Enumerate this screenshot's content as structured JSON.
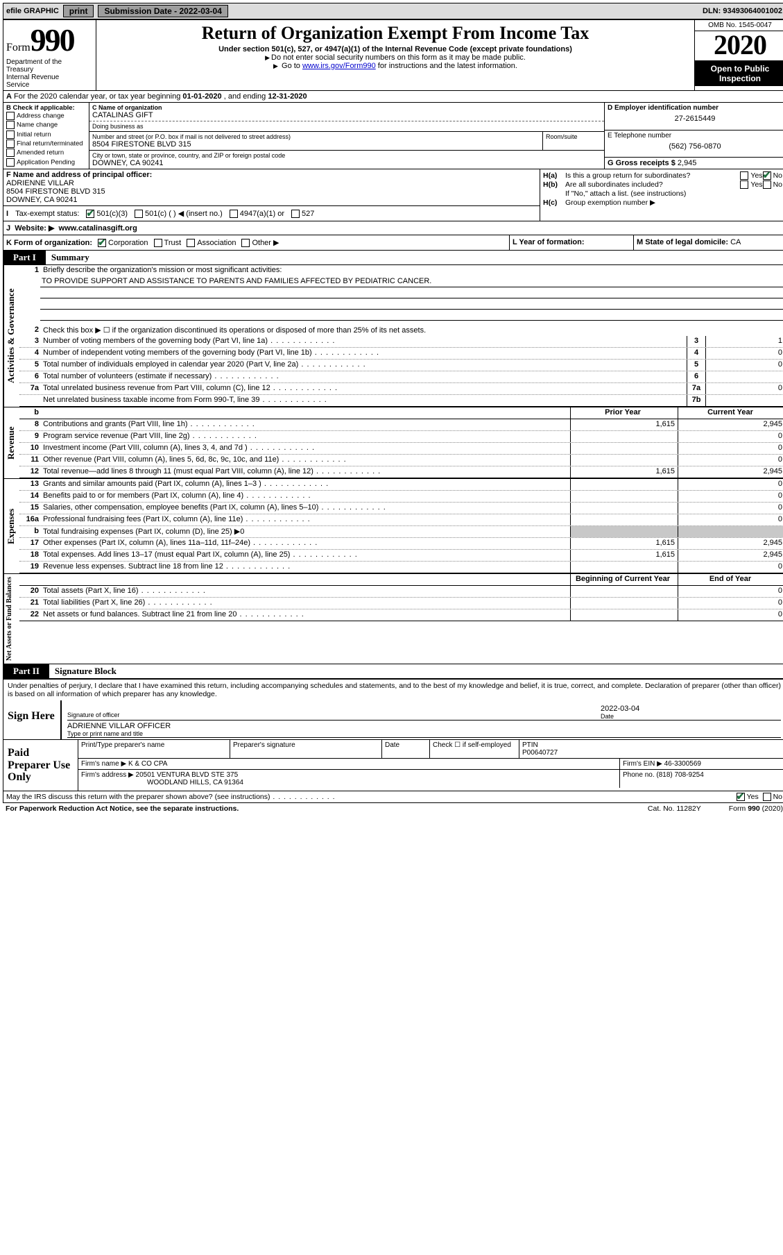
{
  "topbar": {
    "efile": "efile GRAPHIC",
    "print": "print",
    "sub_label": "Submission Date - ",
    "sub_date": "2022-03-04",
    "dln_label": "DLN: ",
    "dln": "93493064001002"
  },
  "header": {
    "form_word": "Form",
    "form_no": "990",
    "dept": "Department of the Treasury\nInternal Revenue Service",
    "title": "Return of Organization Exempt From Income Tax",
    "subtitle": "Under section 501(c), 527, or 4947(a)(1) of the Internal Revenue Code (except private foundations)",
    "note1": "Do not enter social security numbers on this form as it may be made public.",
    "note2_pre": "Go to ",
    "note2_link": "www.irs.gov/Form990",
    "note2_post": " for instructions and the latest information.",
    "omb": "OMB No. 1545-0047",
    "year": "2020",
    "open": "Open to Public Inspection"
  },
  "row_a": {
    "text_pre": "For the 2020 calendar year, or tax year beginning ",
    "begin": "01-01-2020",
    "text_mid": " , and ending ",
    "end": "12-31-2020"
  },
  "b": {
    "label": "B Check if applicable:",
    "opts": [
      "Address change",
      "Name change",
      "Initial return",
      "Final return/terminated",
      "Amended return",
      "Application Pending"
    ]
  },
  "c": {
    "name_lbl": "C Name of organization",
    "name": "CATALINAS GIFT",
    "dba_lbl": "Doing business as",
    "street_lbl": "Number and street (or P.O. box if mail is not delivered to street address)",
    "suite_lbl": "Room/suite",
    "street": "8504 FIRESTONE BLVD 315",
    "city_lbl": "City or town, state or province, country, and ZIP or foreign postal code",
    "city": "DOWNEY, CA  90241"
  },
  "d": {
    "lbl": "D Employer identification number",
    "val": "27-2615449"
  },
  "e": {
    "lbl": "E Telephone number",
    "val": "(562) 756-0870"
  },
  "g": {
    "lbl": "G Gross receipts $ ",
    "val": "2,945"
  },
  "f": {
    "lbl": "F Name and address of principal officer:",
    "name": "ADRIENNE VILLAR",
    "addr1": "8504 FIRESTONE BLVD 315",
    "addr2": "DOWNEY, CA  90241"
  },
  "h": {
    "a_lbl": "H(a)",
    "a_txt": "Is this a group return for subordinates?",
    "b_lbl": "H(b)",
    "b_txt": "Are all subordinates included?",
    "attach": "If \"No,\" attach a list. (see instructions)",
    "c_lbl": "H(c)",
    "c_txt": "Group exemption number ▶",
    "yes": "Yes",
    "no": "No"
  },
  "i": {
    "lbl": "Tax-exempt status:",
    "o1": "501(c)(3)",
    "o2": "501(c) (  ) ◀ (insert no.)",
    "o3": "4947(a)(1) or",
    "o4": "527"
  },
  "j": {
    "lbl": "J",
    "txt": "Website: ▶",
    "val": "www.catalinasgift.org"
  },
  "k": {
    "lbl": "K Form of organization:",
    "opts": [
      "Corporation",
      "Trust",
      "Association",
      "Other ▶"
    ],
    "l_lbl": "L Year of formation:",
    "m_lbl": "M State of legal domicile: ",
    "m_val": "CA"
  },
  "part1": {
    "tab": "Part I",
    "title": "Summary"
  },
  "gov": {
    "vert": "Activities & Governance",
    "q1_lbl": "1",
    "q1_txt": "Briefly describe the organization's mission or most significant activities:",
    "mission": "TO PROVIDE SUPPORT AND ASSISTANCE TO PARENTS AND FAMILIES AFFECTED BY PEDIATRIC CANCER.",
    "q2_lbl": "2",
    "q2_txt": "Check this box ▶ ☐  if the organization discontinued its operations or disposed of more than 25% of its net assets.",
    "rows": [
      {
        "n": "3",
        "t": "Number of voting members of the governing body (Part VI, line 1a)",
        "b": "3",
        "v": "1"
      },
      {
        "n": "4",
        "t": "Number of independent voting members of the governing body (Part VI, line 1b)",
        "b": "4",
        "v": "0"
      },
      {
        "n": "5",
        "t": "Total number of individuals employed in calendar year 2020 (Part V, line 2a)",
        "b": "5",
        "v": "0"
      },
      {
        "n": "6",
        "t": "Total number of volunteers (estimate if necessary)",
        "b": "6",
        "v": ""
      },
      {
        "n": "7a",
        "t": "Total unrelated business revenue from Part VIII, column (C), line 12",
        "b": "7a",
        "v": "0"
      },
      {
        "n": "",
        "t": "Net unrelated business taxable income from Form 990-T, line 39",
        "b": "7b",
        "v": ""
      }
    ]
  },
  "rev": {
    "vert": "Revenue",
    "hdr_b": "b",
    "hdr_prior": "Prior Year",
    "hdr_cur": "Current Year",
    "rows": [
      {
        "n": "8",
        "t": "Contributions and grants (Part VIII, line 1h)",
        "p": "1,615",
        "c": "2,945"
      },
      {
        "n": "9",
        "t": "Program service revenue (Part VIII, line 2g)",
        "p": "",
        "c": "0"
      },
      {
        "n": "10",
        "t": "Investment income (Part VIII, column (A), lines 3, 4, and 7d )",
        "p": "",
        "c": "0"
      },
      {
        "n": "11",
        "t": "Other revenue (Part VIII, column (A), lines 5, 6d, 8c, 9c, 10c, and 11e)",
        "p": "",
        "c": "0"
      },
      {
        "n": "12",
        "t": "Total revenue—add lines 8 through 11 (must equal Part VIII, column (A), line 12)",
        "p": "1,615",
        "c": "2,945"
      }
    ]
  },
  "exp": {
    "vert": "Expenses",
    "rows": [
      {
        "n": "13",
        "t": "Grants and similar amounts paid (Part IX, column (A), lines 1–3 )",
        "p": "",
        "c": "0"
      },
      {
        "n": "14",
        "t": "Benefits paid to or for members (Part IX, column (A), line 4)",
        "p": "",
        "c": "0"
      },
      {
        "n": "15",
        "t": "Salaries, other compensation, employee benefits (Part IX, column (A), lines 5–10)",
        "p": "",
        "c": "0"
      },
      {
        "n": "16a",
        "t": "Professional fundraising fees (Part IX, column (A), line 11e)",
        "p": "",
        "c": "0"
      },
      {
        "n": "b",
        "t": "Total fundraising expenses (Part IX, column (D), line 25) ▶0",
        "p": "SHADE",
        "c": "SHADE"
      },
      {
        "n": "17",
        "t": "Other expenses (Part IX, column (A), lines 11a–11d, 11f–24e)",
        "p": "1,615",
        "c": "2,945"
      },
      {
        "n": "18",
        "t": "Total expenses. Add lines 13–17 (must equal Part IX, column (A), line 25)",
        "p": "1,615",
        "c": "2,945"
      },
      {
        "n": "19",
        "t": "Revenue less expenses. Subtract line 18 from line 12",
        "p": "",
        "c": "0"
      }
    ]
  },
  "net": {
    "vert": "Net Assets or Fund Balances",
    "hdr_beg": "Beginning of Current Year",
    "hdr_end": "End of Year",
    "rows": [
      {
        "n": "20",
        "t": "Total assets (Part X, line 16)",
        "p": "",
        "c": "0"
      },
      {
        "n": "21",
        "t": "Total liabilities (Part X, line 26)",
        "p": "",
        "c": "0"
      },
      {
        "n": "22",
        "t": "Net assets or fund balances. Subtract line 21 from line 20",
        "p": "",
        "c": "0"
      }
    ]
  },
  "part2": {
    "tab": "Part II",
    "title": "Signature Block"
  },
  "penalty": "Under penalties of perjury, I declare that I have examined this return, including accompanying schedules and statements, and to the best of my knowledge and belief, it is true, correct, and complete. Declaration of preparer (other than officer) is based on all information of which preparer has any knowledge.",
  "sign": {
    "here": "Sign Here",
    "sig_lbl": "Signature of officer",
    "date_lbl": "Date",
    "date": "2022-03-04",
    "name": "ADRIENNE VILLAR  OFFICER",
    "name_lbl": "Type or print name and title"
  },
  "paid": {
    "label": "Paid Preparer Use Only",
    "h1": "Print/Type preparer's name",
    "h2": "Preparer's signature",
    "h3": "Date",
    "h4_pre": "Check ☐ if self-employed",
    "h5": "PTIN",
    "ptin": "P00640727",
    "firm_lbl": "Firm's name    ▶ ",
    "firm": "K & CO CPA",
    "ein_lbl": "Firm's EIN ▶ ",
    "ein": "46-3300569",
    "addr_lbl": "Firm's address ▶ ",
    "addr1": "20501 VENTURA BLVD STE 375",
    "addr2": "WOODLAND HILLS, CA  91364",
    "phone_lbl": "Phone no. ",
    "phone": "(818) 708-9254"
  },
  "discuss": {
    "txt": "May the IRS discuss this return with the preparer shown above? (see instructions)",
    "yes": "Yes",
    "no": "No"
  },
  "footer": {
    "pra": "For Paperwork Reduction Act Notice, see the separate instructions.",
    "cat": "Cat. No. 11282Y",
    "form": "Form 990 (2020)"
  }
}
